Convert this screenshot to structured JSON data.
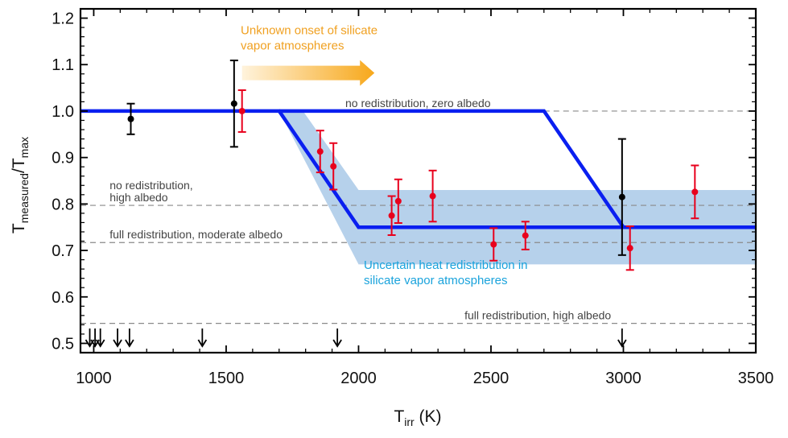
{
  "chart_data": {
    "type": "scatter",
    "xlabel": {
      "main": "T",
      "sub": "irr",
      "unit": " (K)"
    },
    "ylabel": {
      "main1": "T",
      "sub1": "measured",
      "mid": "/T",
      "sub2": "max"
    },
    "xlim": [
      950,
      3500
    ],
    "ylim": [
      0.48,
      1.22
    ],
    "xticks": [
      1000,
      1500,
      2000,
      2500,
      3000,
      3500
    ],
    "yticks": [
      0.5,
      0.6,
      0.7,
      0.8,
      0.9,
      1.0,
      1.1,
      1.2
    ],
    "ytick_labels": [
      "0.5",
      "0.6",
      "0.7",
      "0.8",
      "0.9",
      "1.0",
      "1.1",
      "1.2"
    ],
    "reference_lines": [
      {
        "y": 1.0,
        "x_start": 2700,
        "label": "no redistribution, zero albedo",
        "label_x": 1950
      },
      {
        "y": 0.797,
        "x_start": 950,
        "label_lines": [
          "no redistribution,",
          "high albedo"
        ],
        "label_x": 1060
      },
      {
        "y": 0.717,
        "x_start": 950,
        "label": "full redistribution, moderate albedo",
        "label_x": 1060
      },
      {
        "y": 0.543,
        "x_start": 950,
        "label": "full redistribution, high albedo",
        "label_x": 2400
      }
    ],
    "model_lines": [
      {
        "name": "",
        "color": "#0a1ff0",
        "points": [
          [
            950,
            1.0
          ],
          [
            1540,
            1.0
          ]
        ]
      },
      {
        "name": "",
        "color": "#0a1ff0",
        "points": [
          [
            1540,
            1.0
          ],
          [
            1700,
            1.0
          ],
          [
            2000,
            0.75
          ],
          [
            3500,
            0.75
          ]
        ]
      },
      {
        "name": "",
        "color": "#0a1ff0",
        "points": [
          [
            1700,
            1.0
          ],
          [
            2700,
            1.0
          ],
          [
            3000,
            0.75
          ]
        ]
      }
    ],
    "uncertainty_band": {
      "color": "#a9c9e8",
      "polygon": [
        [
          1700,
          1.0
        ],
        [
          1790,
          1.0
        ],
        [
          2000,
          0.83
        ],
        [
          3500,
          0.83
        ],
        [
          3500,
          0.67
        ],
        [
          2000,
          0.67
        ]
      ]
    },
    "series": [
      {
        "color": "#000000",
        "points": [
          {
            "x": 1140,
            "y": 0.983,
            "err_lo": 0.033,
            "err_hi": 0.033
          },
          {
            "x": 1530,
            "y": 1.016,
            "err_lo": 0.093,
            "err_hi": 0.093
          },
          {
            "x": 2995,
            "y": 0.815,
            "err_lo": 0.125,
            "err_hi": 0.125
          }
        ]
      },
      {
        "color": "#e8001c",
        "points": [
          {
            "x": 1560,
            "y": 1.0,
            "err_lo": 0.045,
            "err_hi": 0.045
          },
          {
            "x": 1855,
            "y": 0.913,
            "err_lo": 0.045,
            "err_hi": 0.045
          },
          {
            "x": 1905,
            "y": 0.881,
            "err_lo": 0.05,
            "err_hi": 0.05
          },
          {
            "x": 2125,
            "y": 0.775,
            "err_lo": 0.042,
            "err_hi": 0.042
          },
          {
            "x": 2150,
            "y": 0.806,
            "err_lo": 0.047,
            "err_hi": 0.047
          },
          {
            "x": 2280,
            "y": 0.817,
            "err_lo": 0.055,
            "err_hi": 0.055
          },
          {
            "x": 2510,
            "y": 0.713,
            "err_lo": 0.035,
            "err_hi": 0.035
          },
          {
            "x": 2630,
            "y": 0.732,
            "err_lo": 0.03,
            "err_hi": 0.03
          },
          {
            "x": 3025,
            "y": 0.705,
            "err_lo": 0.047,
            "err_hi": 0.047
          },
          {
            "x": 3270,
            "y": 0.826,
            "err_lo": 0.057,
            "err_hi": 0.057
          }
        ]
      }
    ],
    "upper_limit_arrows_x": [
      985,
      1005,
      1025,
      1090,
      1135,
      1410,
      1920,
      2995
    ],
    "annotations": [
      {
        "text_lines": [
          "Unknown onset of silicate",
          "vapor atmospheres"
        ],
        "color": "#f0a020",
        "x": 1555,
        "y": 1.165
      },
      {
        "text_lines": [
          "Uncertain heat redistribution in",
          "silicate vapor atmospheres"
        ],
        "color": "#1aa3dc",
        "x": 2020,
        "y": 0.66
      }
    ],
    "onset_arrow": {
      "x_start": 1560,
      "x_end": 2060,
      "y": 1.082,
      "color_start": "#fff3dc",
      "color_end": "#f7a81b"
    }
  }
}
